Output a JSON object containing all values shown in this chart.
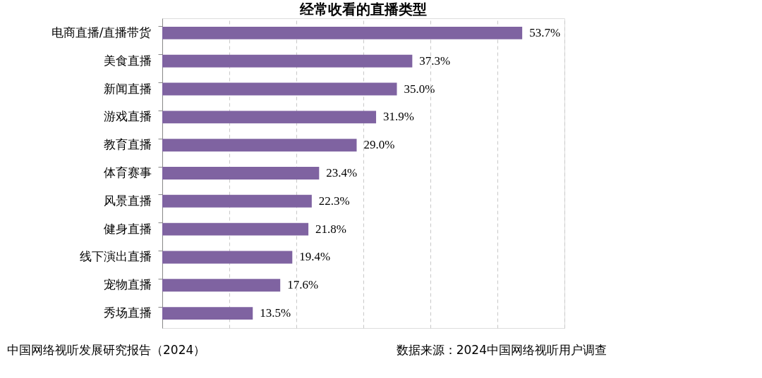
{
  "chart_data": {
    "type": "bar",
    "orientation": "horizontal",
    "title": "经常收看的直播类型",
    "categories": [
      "电商直播/直播带货",
      "美食直播",
      "新闻直播",
      "游戏直播",
      "教育直播",
      "体育赛事",
      "风景直播",
      "健身直播",
      "线下演出直播",
      "宠物直播",
      "秀场直播"
    ],
    "values": [
      53.7,
      37.3,
      35.0,
      31.9,
      29.0,
      23.4,
      22.3,
      21.8,
      19.4,
      17.6,
      13.5
    ],
    "value_labels": [
      "53.7%",
      "37.3%",
      "35.0%",
      "31.9%",
      "29.0%",
      "23.4%",
      "22.3%",
      "21.8%",
      "19.4%",
      "17.6%",
      "13.5%"
    ],
    "color": "#7f63a1",
    "xlim": [
      0,
      60
    ],
    "xticks": [
      {
        "value": 0,
        "label": null
      },
      {
        "value": 10,
        "label": null
      },
      {
        "value": 20,
        "label": null
      },
      {
        "value": 30,
        "label": null
      },
      {
        "value": 40,
        "label": null
      },
      {
        "value": 50,
        "label": null
      },
      {
        "value": 60,
        "label": null
      }
    ],
    "grid": "x",
    "tick_labels": "y",
    "annotations": [
      "中国网络视听发展研究报告（2024）",
      "数据来源：2024中国网络视听用户调查"
    ]
  }
}
